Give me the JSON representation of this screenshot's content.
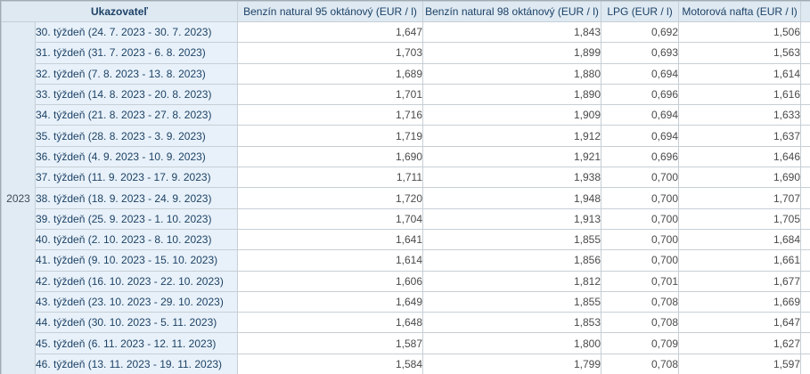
{
  "table": {
    "year": "2023",
    "header": {
      "indicator": "Ukazovateľ",
      "columns": [
        "Benzín natural 95 oktánový (EUR / l)",
        "Benzín natural 98 oktánový (EUR / l)",
        "LPG (EUR / l)",
        "Motorová nafta (EUR / l)"
      ]
    },
    "rows": [
      {
        "week": "30. týždeň (24. 7. 2023 - 30. 7. 2023)",
        "values": [
          "1,647",
          "1,843",
          "0,692",
          "1,506"
        ]
      },
      {
        "week": "31. týždeň (31. 7. 2023 - 6. 8. 2023)",
        "values": [
          "1,703",
          "1,899",
          "0,693",
          "1,563"
        ]
      },
      {
        "week": "32. týždeň (7. 8. 2023 - 13. 8. 2023)",
        "values": [
          "1,689",
          "1,880",
          "0,694",
          "1,614"
        ]
      },
      {
        "week": "33. týždeň (14. 8. 2023 - 20. 8. 2023)",
        "values": [
          "1,701",
          "1,890",
          "0,696",
          "1,616"
        ]
      },
      {
        "week": "34. týždeň (21. 8. 2023 - 27. 8. 2023)",
        "values": [
          "1,716",
          "1,909",
          "0,694",
          "1,633"
        ]
      },
      {
        "week": "35. týždeň (28. 8. 2023 - 3. 9. 2023)",
        "values": [
          "1,719",
          "1,912",
          "0,694",
          "1,637"
        ]
      },
      {
        "week": "36. týždeň (4. 9. 2023 - 10. 9. 2023)",
        "values": [
          "1,690",
          "1,921",
          "0,696",
          "1,646"
        ]
      },
      {
        "week": "37. týždeň (11. 9. 2023 - 17. 9. 2023)",
        "values": [
          "1,711",
          "1,938",
          "0,700",
          "1,690"
        ]
      },
      {
        "week": "38. týždeň (18. 9. 2023 - 24. 9. 2023)",
        "values": [
          "1,720",
          "1,948",
          "0,700",
          "1,707"
        ]
      },
      {
        "week": "39. týždeň (25. 9. 2023 - 1. 10. 2023)",
        "values": [
          "1,704",
          "1,913",
          "0,700",
          "1,705"
        ]
      },
      {
        "week": "40. týždeň (2. 10. 2023 - 8. 10. 2023)",
        "values": [
          "1,641",
          "1,855",
          "0,700",
          "1,684"
        ]
      },
      {
        "week": "41. týždeň (9. 10. 2023 - 15. 10. 2023)",
        "values": [
          "1,614",
          "1,856",
          "0,700",
          "1,661"
        ]
      },
      {
        "week": "42. týždeň (16. 10. 2023 - 22. 10. 2023)",
        "values": [
          "1,606",
          "1,812",
          "0,701",
          "1,677"
        ]
      },
      {
        "week": "43. týždeň (23. 10. 2023 - 29. 10. 2023)",
        "values": [
          "1,649",
          "1,855",
          "0,708",
          "1,669"
        ]
      },
      {
        "week": "44. týždeň (30. 10. 2023 - 5. 11. 2023)",
        "values": [
          "1,648",
          "1,853",
          "0,708",
          "1,647"
        ]
      },
      {
        "week": "45. týždeň (6. 11. 2023 - 12. 11. 2023)",
        "values": [
          "1,587",
          "1,800",
          "0,709",
          "1,627"
        ]
      },
      {
        "week": "46. týždeň (13. 11. 2023 - 19. 11. 2023)",
        "values": [
          "1,584",
          "1,799",
          "0,708",
          "1,597"
        ]
      }
    ],
    "colors": {
      "header_bg": "#dee9f2",
      "week_cell_bg": "#e8f1f9",
      "year_cell_bg": "#e1ebf4",
      "label_text": "#1d4266",
      "value_text": "#4a4a4a",
      "inner_border": "#c6cfd6",
      "outer_border": "#9faab3"
    }
  },
  "chart_data": {
    "type": "table",
    "categories": [
      "30. týždeň (24. 7. 2023 - 30. 7. 2023)",
      "31. týždeň (31. 7. 2023 - 6. 8. 2023)",
      "32. týždeň (7. 8. 2023 - 13. 8. 2023)",
      "33. týždeň (14. 8. 2023 - 20. 8. 2023)",
      "34. týždeň (21. 8. 2023 - 27. 8. 2023)",
      "35. týždeň (28. 8. 2023 - 3. 9. 2023)",
      "36. týždeň (4. 9. 2023 - 10. 9. 2023)",
      "37. týždeň (11. 9. 2023 - 17. 9. 2023)",
      "38. týždeň (18. 9. 2023 - 24. 9. 2023)",
      "39. týždeň (25. 9. 2023 - 1. 10. 2023)",
      "40. týždeň (2. 10. 2023 - 8. 10. 2023)",
      "41. týždeň (9. 10. 2023 - 15. 10. 2023)",
      "42. týždeň (16. 10. 2023 - 22. 10. 2023)",
      "43. týždeň (23. 10. 2023 - 29. 10. 2023)",
      "44. týždeň (30. 10. 2023 - 5. 11. 2023)",
      "45. týždeň (6. 11. 2023 - 12. 11. 2023)",
      "46. týždeň (13. 11. 2023 - 19. 11. 2023)"
    ],
    "series": [
      {
        "name": "Benzín natural 95 oktánový (EUR / l)",
        "values": [
          1.647,
          1.703,
          1.689,
          1.701,
          1.716,
          1.719,
          1.69,
          1.711,
          1.72,
          1.704,
          1.641,
          1.614,
          1.606,
          1.649,
          1.648,
          1.587,
          1.584
        ]
      },
      {
        "name": "Benzín natural 98 oktánový (EUR / l)",
        "values": [
          1.843,
          1.899,
          1.88,
          1.89,
          1.909,
          1.912,
          1.921,
          1.938,
          1.948,
          1.913,
          1.855,
          1.856,
          1.812,
          1.855,
          1.853,
          1.8,
          1.799
        ]
      },
      {
        "name": "LPG (EUR / l)",
        "values": [
          0.692,
          0.693,
          0.694,
          0.696,
          0.694,
          0.694,
          0.696,
          0.7,
          0.7,
          0.7,
          0.7,
          0.7,
          0.701,
          0.708,
          0.708,
          0.709,
          0.708
        ]
      },
      {
        "name": "Motorová nafta (EUR / l)",
        "values": [
          1.506,
          1.563,
          1.614,
          1.616,
          1.633,
          1.637,
          1.646,
          1.69,
          1.707,
          1.705,
          1.684,
          1.661,
          1.677,
          1.669,
          1.647,
          1.627,
          1.597
        ]
      }
    ]
  }
}
